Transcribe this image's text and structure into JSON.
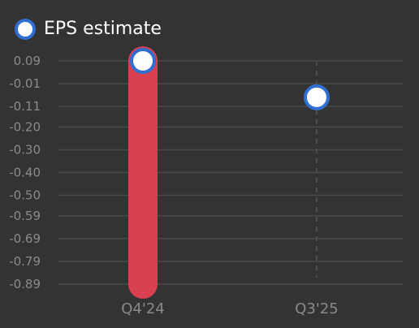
{
  "chart_data": {
    "type": "bar",
    "categories": [
      "Q4'24",
      "Q3'25"
    ],
    "series": [
      {
        "name": "EPS estimate",
        "kind": "marker",
        "values": [
          0.09,
          -0.07
        ]
      }
    ],
    "bars": [
      {
        "category": "Q4'24",
        "from": 0.09,
        "to": -0.89
      }
    ],
    "y_ticks": [
      0.09,
      -0.01,
      -0.11,
      -0.2,
      -0.3,
      -0.4,
      -0.5,
      -0.59,
      -0.69,
      -0.79,
      -0.89
    ],
    "y_tick_labels": [
      "0.09",
      "-0.01",
      "-0.11",
      "-0.20",
      "-0.30",
      "-0.40",
      "-0.50",
      "-0.59",
      "-0.69",
      "-0.79",
      "-0.89"
    ],
    "ylim": [
      -0.89,
      0.09
    ],
    "legend": "top-left",
    "grid": true
  },
  "legend": {
    "label": "EPS estimate"
  },
  "colors": {
    "background": "#333333",
    "grid": "#4a4a4a",
    "tick_text": "#8a8a8a",
    "bar": "#d9404f",
    "marker_fill": "#ffffff",
    "marker_stroke": "#2f6fd1",
    "projection_line": "#555555"
  }
}
